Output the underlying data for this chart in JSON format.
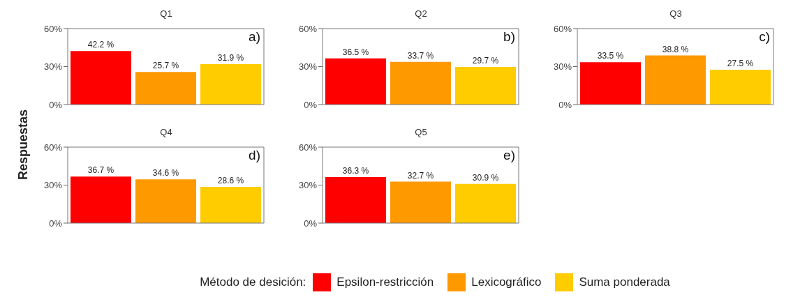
{
  "chart_data": [
    {
      "type": "bar",
      "title": "Q1",
      "ylabel": "Respuestas",
      "legend_title": "Método de desición:",
      "legend": "bottom",
      "tick_labels": "y",
      "grid": false,
      "categories": [
        null
      ],
      "ylim": [
        0,
        60
      ],
      "yticks": [
        {
          "value": 0,
          "label": "0%"
        },
        {
          "value": 30,
          "label": "30%"
        },
        {
          "value": 60,
          "label": "60%"
        }
      ],
      "annotations": [
        "a)"
      ],
      "series": [
        {
          "name": "Epsilon-restricción",
          "color": "#ff0000",
          "values": [
            42.2
          ],
          "value_labels": [
            "42.2 %"
          ]
        },
        {
          "name": "Lexicográfico",
          "color": "#ff9900",
          "values": [
            25.7
          ],
          "value_labels": [
            "25.7 %"
          ]
        },
        {
          "name": "Suma ponderada",
          "color": "#ffcc00",
          "values": [
            31.9
          ],
          "value_labels": [
            "31.9 %"
          ]
        }
      ]
    },
    {
      "type": "bar",
      "title": "Q2",
      "tick_labels": "y",
      "grid": false,
      "categories": [
        null
      ],
      "ylim": [
        0,
        60
      ],
      "yticks": [
        {
          "value": 0,
          "label": "0%"
        },
        {
          "value": 30,
          "label": "30%"
        },
        {
          "value": 60,
          "label": "60%"
        }
      ],
      "annotations": [
        "b)"
      ],
      "series": [
        {
          "color": "#ff0000",
          "values": [
            36.5
          ],
          "value_labels": [
            "36.5 %"
          ]
        },
        {
          "color": "#ff9900",
          "values": [
            33.7
          ],
          "value_labels": [
            "33.7 %"
          ]
        },
        {
          "color": "#ffcc00",
          "values": [
            29.7
          ],
          "value_labels": [
            "29.7 %"
          ]
        }
      ]
    },
    {
      "type": "bar",
      "title": "Q3",
      "tick_labels": "y",
      "grid": false,
      "categories": [
        null
      ],
      "ylim": [
        0,
        60
      ],
      "yticks": [
        {
          "value": 0,
          "label": "0%"
        },
        {
          "value": 30,
          "label": "30%"
        },
        {
          "value": 60,
          "label": "60%"
        }
      ],
      "annotations": [
        "c)"
      ],
      "series": [
        {
          "color": "#ff0000",
          "values": [
            33.5
          ],
          "value_labels": [
            "33.5 %"
          ]
        },
        {
          "color": "#ff9900",
          "values": [
            38.8
          ],
          "value_labels": [
            "38.8 %"
          ]
        },
        {
          "color": "#ffcc00",
          "values": [
            27.5
          ],
          "value_labels": [
            "27.5 %"
          ]
        }
      ]
    },
    {
      "type": "bar",
      "title": "Q4",
      "tick_labels": "y",
      "grid": false,
      "categories": [
        null
      ],
      "ylim": [
        0,
        60
      ],
      "yticks": [
        {
          "value": 0,
          "label": "0%"
        },
        {
          "value": 30,
          "label": "30%"
        },
        {
          "value": 60,
          "label": "60%"
        }
      ],
      "annotations": [
        "d)"
      ],
      "series": [
        {
          "color": "#ff0000",
          "values": [
            36.7
          ],
          "value_labels": [
            "36.7 %"
          ]
        },
        {
          "color": "#ff9900",
          "values": [
            34.6
          ],
          "value_labels": [
            "34.6 %"
          ]
        },
        {
          "color": "#ffcc00",
          "values": [
            28.6
          ],
          "value_labels": [
            "28.6 %"
          ]
        }
      ]
    },
    {
      "type": "bar",
      "title": "Q5",
      "tick_labels": "y",
      "grid": false,
      "categories": [
        null
      ],
      "ylim": [
        0,
        60
      ],
      "yticks": [
        {
          "value": 0,
          "label": "0%"
        },
        {
          "value": 30,
          "label": "30%"
        },
        {
          "value": 60,
          "label": "60%"
        }
      ],
      "annotations": [
        "e)"
      ],
      "series": [
        {
          "color": "#ff0000",
          "values": [
            36.3
          ],
          "value_labels": [
            "36.3 %"
          ]
        },
        {
          "color": "#ff9900",
          "values": [
            32.7
          ],
          "value_labels": [
            "32.7 %"
          ]
        },
        {
          "color": "#ffcc00",
          "values": [
            30.9
          ],
          "value_labels": [
            "30.9 %"
          ]
        }
      ]
    }
  ]
}
